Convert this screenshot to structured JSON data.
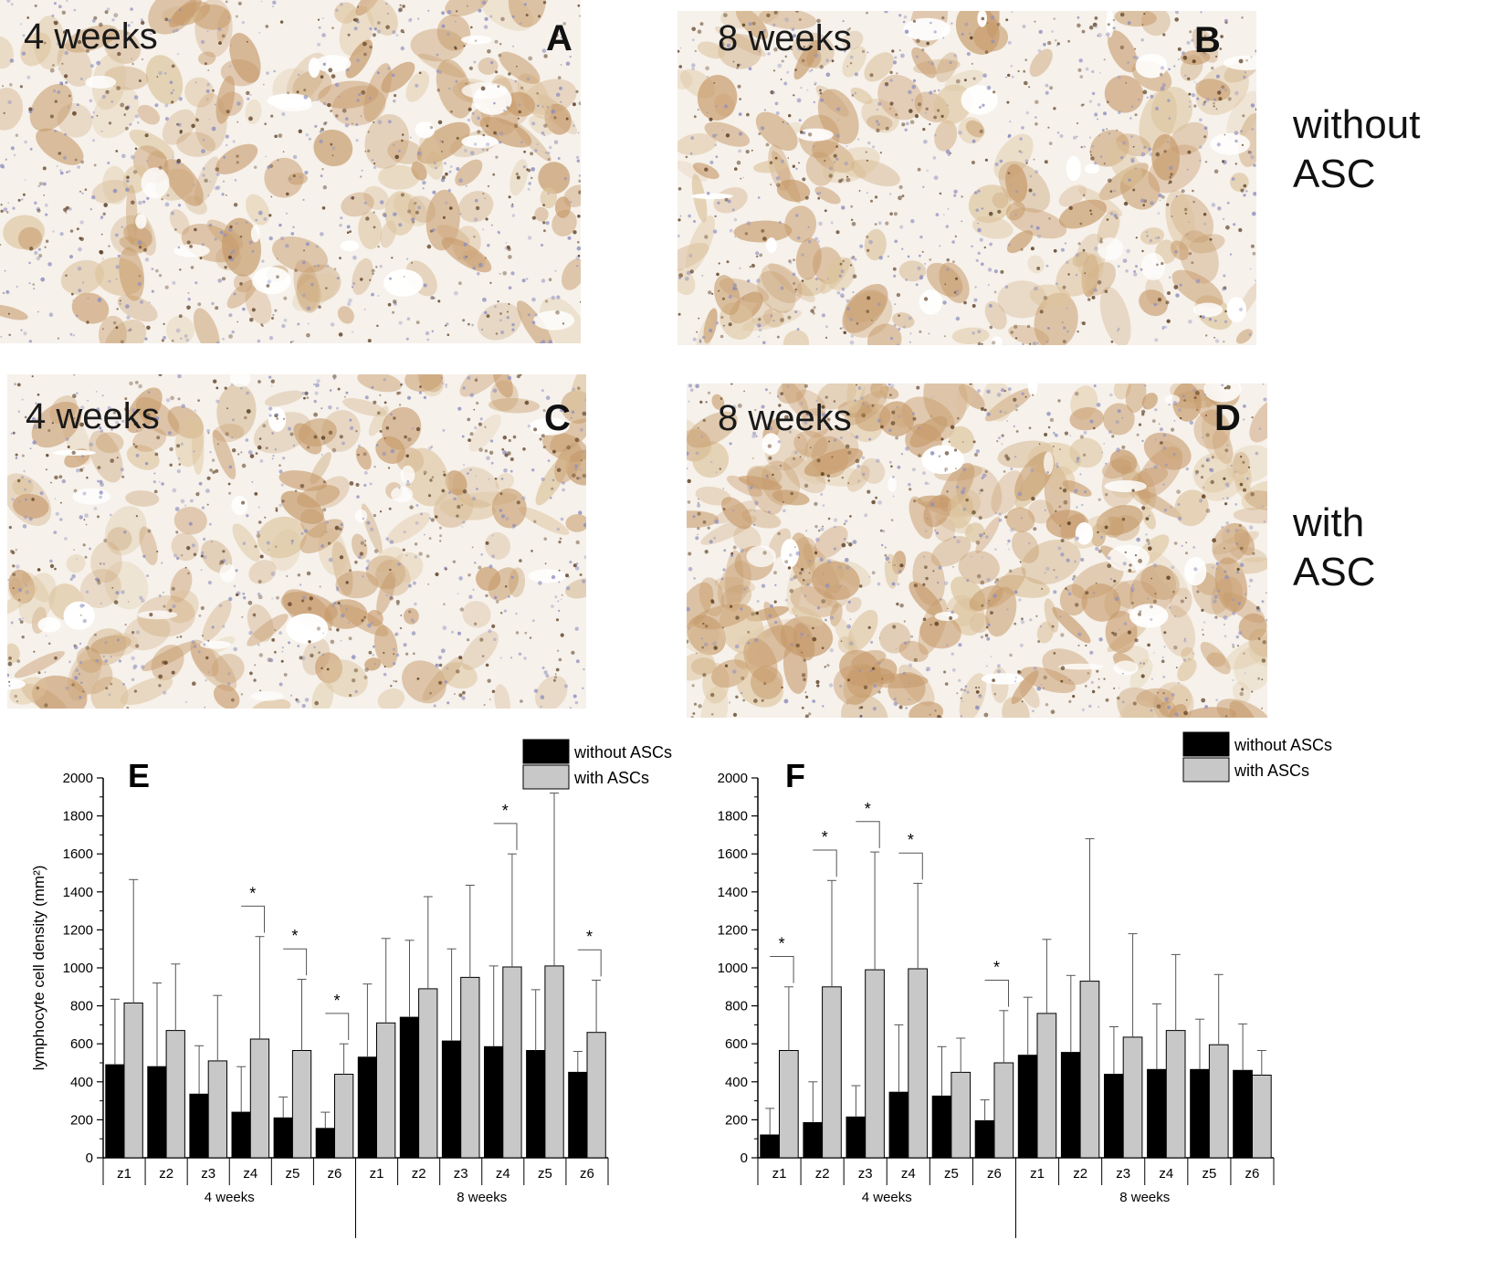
{
  "panels": [
    {
      "id": "A",
      "letter": "A",
      "time": "4 weeks"
    },
    {
      "id": "B",
      "letter": "B",
      "time": "8 weeks"
    },
    {
      "id": "C",
      "letter": "C",
      "time": "4 weeks"
    },
    {
      "id": "D",
      "letter": "D",
      "time": "8 weeks"
    }
  ],
  "row_labels": {
    "top": {
      "line1": "without",
      "line2": "ASC"
    },
    "bottom": {
      "line1": "with",
      "line2": "ASC"
    }
  },
  "colors": {
    "without": "#000000",
    "with": "#c8c8c8",
    "stain_brown": "#c69a6a",
    "stain_blue": "#8e8fc0",
    "background": "#f6f1ea"
  },
  "chart_data": [
    {
      "type": "bar",
      "panel_letter": "E",
      "ylabel": "lymphocyte cell density (mm²)",
      "ylim": [
        0,
        2000
      ],
      "yticks": [
        "0",
        "200",
        "400",
        "600",
        "800",
        "1000",
        "1200",
        "1400",
        "1600",
        "1800",
        "2000"
      ],
      "categories": [
        "z1",
        "z2",
        "z3",
        "z4",
        "z5",
        "z6",
        "z1",
        "z2",
        "z3",
        "z4",
        "z5",
        "z6"
      ],
      "groups": [
        "4 weeks",
        "8 weeks"
      ],
      "legend": {
        "without": "without ASCs",
        "with": "with ASCs",
        "position": "top-right"
      },
      "series": [
        {
          "name": "without ASCs",
          "values": [
            490,
            480,
            335,
            240,
            210,
            155,
            530,
            740,
            615,
            585,
            565,
            450
          ],
          "errors": [
            345,
            440,
            255,
            240,
            110,
            85,
            385,
            405,
            485,
            425,
            320,
            110
          ]
        },
        {
          "name": "with ASCs",
          "values": [
            815,
            670,
            510,
            625,
            565,
            440,
            710,
            890,
            950,
            1005,
            1010,
            660
          ],
          "errors": [
            650,
            350,
            345,
            540,
            375,
            160,
            445,
            485,
            485,
            595,
            910,
            275
          ]
        }
      ],
      "significance": [
        {
          "category_index": 3,
          "label": "*"
        },
        {
          "category_index": 4,
          "label": "*"
        },
        {
          "category_index": 5,
          "label": "*"
        },
        {
          "category_index": 9,
          "label": "*"
        },
        {
          "category_index": 11,
          "label": "*"
        }
      ]
    },
    {
      "type": "bar",
      "panel_letter": "F",
      "ylim": [
        0,
        2000
      ],
      "yticks": [
        "0",
        "200",
        "400",
        "600",
        "800",
        "1000",
        "1200",
        "1400",
        "1600",
        "1800",
        "2000"
      ],
      "categories": [
        "z1",
        "z2",
        "z3",
        "z4",
        "z5",
        "z6",
        "z1",
        "z2",
        "z3",
        "z4",
        "z5",
        "z6"
      ],
      "groups": [
        "4 weeks",
        "8 weeks"
      ],
      "legend": {
        "without": "without ASCs",
        "with": "with ASCs",
        "position": "top-right"
      },
      "series": [
        {
          "name": "without ASCs",
          "values": [
            120,
            185,
            215,
            345,
            325,
            195,
            540,
            555,
            440,
            465,
            465,
            460
          ],
          "errors": [
            140,
            215,
            165,
            355,
            260,
            110,
            305,
            405,
            250,
            345,
            265,
            245
          ]
        },
        {
          "name": "with ASCs",
          "values": [
            565,
            900,
            990,
            995,
            450,
            500,
            760,
            930,
            635,
            670,
            595,
            435
          ],
          "errors": [
            335,
            560,
            620,
            450,
            180,
            275,
            390,
            750,
            545,
            400,
            370,
            130
          ]
        }
      ],
      "significance": [
        {
          "category_index": 0,
          "label": "*"
        },
        {
          "category_index": 1,
          "label": "*"
        },
        {
          "category_index": 2,
          "label": "*"
        },
        {
          "category_index": 3,
          "label": "*"
        },
        {
          "category_index": 5,
          "label": "*"
        }
      ]
    }
  ]
}
